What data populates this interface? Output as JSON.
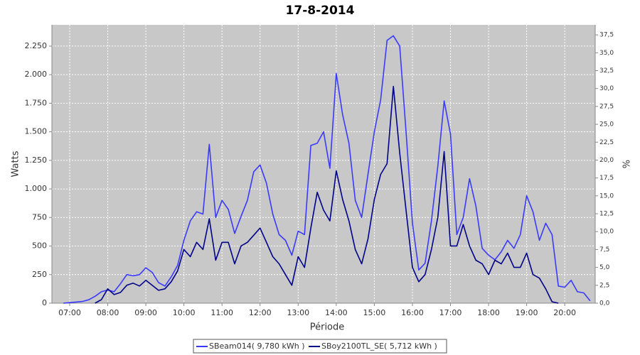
{
  "chart_data": {
    "type": "line",
    "title": "17-8-2014",
    "x_label": "Période",
    "y_label": "Watts",
    "y2_label": "%",
    "xlim": [
      "06:32",
      "20:48"
    ],
    "xticks": [
      "07:00",
      "08:00",
      "09:00",
      "10:00",
      "11:00",
      "12:00",
      "13:00",
      "14:00",
      "15:00",
      "16:00",
      "17:00",
      "18:00",
      "19:00",
      "20:00"
    ],
    "ylim": [
      0,
      2436
    ],
    "yticks": [
      0,
      250,
      500,
      750,
      {
        "value": 1000,
        "label": "1.000"
      },
      {
        "value": 1250,
        "label": "1.250"
      },
      {
        "value": 1500,
        "label": "1.500"
      },
      {
        "value": 1750,
        "label": "1.750"
      },
      {
        "value": 2000,
        "label": "2.000"
      },
      {
        "value": 2250,
        "label": "2.250"
      }
    ],
    "y2lim": [
      0,
      38.9
    ],
    "y2ticks": [
      {
        "value": 0,
        "label": "0,0"
      },
      {
        "value": 2.5,
        "label": "2,5"
      },
      {
        "value": 5,
        "label": "5,0"
      },
      {
        "value": 7.5,
        "label": "7,5"
      },
      {
        "value": 10,
        "label": "10,0"
      },
      {
        "value": 12.5,
        "label": "12,5"
      },
      {
        "value": 15,
        "label": "15,0"
      },
      {
        "value": 17.5,
        "label": "17,5"
      },
      {
        "value": 20,
        "label": "20,0"
      },
      {
        "value": 22.5,
        "label": "22,5"
      },
      {
        "value": 25,
        "label": "25,0"
      },
      {
        "value": 27.5,
        "label": "27,5"
      },
      {
        "value": 30,
        "label": "30,0"
      },
      {
        "value": 32.5,
        "label": "32,5"
      },
      {
        "value": 35,
        "label": "35,0"
      },
      {
        "value": 37.5,
        "label": "37,5"
      }
    ],
    "grid": true,
    "legend": "bottom",
    "series": [
      {
        "name": "SBeam014( 9,780 kWh )",
        "color": "#3a3aff",
        "axis": "y",
        "x": [
          "06:50",
          "07:00",
          "07:10",
          "07:20",
          "07:30",
          "07:40",
          "07:50",
          "08:00",
          "08:10",
          "08:20",
          "08:30",
          "08:40",
          "08:50",
          "09:00",
          "09:10",
          "09:20",
          "09:30",
          "09:40",
          "09:50",
          "10:00",
          "10:10",
          "10:20",
          "10:30",
          "10:40",
          "10:50",
          "11:00",
          "11:10",
          "11:20",
          "11:30",
          "11:40",
          "11:50",
          "12:00",
          "12:10",
          "12:20",
          "12:30",
          "12:40",
          "12:50",
          "13:00",
          "13:10",
          "13:20",
          "13:30",
          "13:40",
          "13:50",
          "14:00",
          "14:10",
          "14:20",
          "14:30",
          "14:40",
          "14:50",
          "15:00",
          "15:10",
          "15:20",
          "15:30",
          "15:40",
          "15:50",
          "16:00",
          "16:10",
          "16:20",
          "16:30",
          "16:40",
          "16:50",
          "17:00",
          "17:10",
          "17:20",
          "17:30",
          "17:40",
          "17:50",
          "18:00",
          "18:10",
          "18:20",
          "18:30",
          "18:40",
          "18:50",
          "19:00",
          "19:10",
          "19:20",
          "19:30",
          "19:40",
          "19:50",
          "20:00",
          "20:10",
          "20:20",
          "20:30",
          "20:40"
        ],
        "values": [
          0,
          5,
          10,
          15,
          30,
          60,
          100,
          115,
          100,
          170,
          250,
          240,
          250,
          310,
          270,
          180,
          150,
          230,
          330,
          550,
          720,
          800,
          780,
          1390,
          750,
          900,
          820,
          610,
          760,
          900,
          1150,
          1210,
          1050,
          780,
          600,
          550,
          420,
          630,
          600,
          1380,
          1400,
          1500,
          1180,
          2010,
          1650,
          1400,
          900,
          750,
          1130,
          1500,
          1780,
          2300,
          2340,
          2250,
          1500,
          700,
          290,
          350,
          720,
          1200,
          1770,
          1480,
          600,
          750,
          1090,
          850,
          480,
          420,
          380,
          450,
          550,
          480,
          600,
          940,
          800,
          550,
          700,
          600,
          150,
          140,
          200,
          100,
          90,
          20
        ]
      },
      {
        "name": "SBoy2100TL_SE( 5,712 kWh )",
        "color": "#00008b",
        "axis": "y2",
        "x": [
          "07:40",
          "07:50",
          "08:00",
          "08:10",
          "08:20",
          "08:30",
          "08:40",
          "08:50",
          "09:00",
          "09:10",
          "09:20",
          "09:30",
          "09:40",
          "09:50",
          "10:00",
          "10:10",
          "10:20",
          "10:30",
          "10:40",
          "10:50",
          "11:00",
          "11:10",
          "11:20",
          "11:30",
          "11:40",
          "11:50",
          "12:00",
          "12:10",
          "12:20",
          "12:30",
          "12:40",
          "12:50",
          "13:00",
          "13:10",
          "13:20",
          "13:30",
          "13:40",
          "13:50",
          "14:00",
          "14:10",
          "14:20",
          "14:30",
          "14:40",
          "14:50",
          "15:00",
          "15:10",
          "15:20",
          "15:30",
          "15:40",
          "15:50",
          "16:00",
          "16:10",
          "16:20",
          "16:30",
          "16:40",
          "16:50",
          "17:00",
          "17:10",
          "17:20",
          "17:30",
          "17:40",
          "17:50",
          "18:00",
          "18:10",
          "18:20",
          "18:30",
          "18:40",
          "18:50",
          "19:00",
          "19:10",
          "19:20",
          "19:30",
          "19:40",
          "19:50"
        ],
        "values": [
          0,
          0.5,
          2,
          1.2,
          1.5,
          2.5,
          2.8,
          2.4,
          3.2,
          2.5,
          1.8,
          2,
          3,
          4.5,
          7.5,
          6.5,
          8.5,
          7.5,
          11.8,
          6,
          8.5,
          8.5,
          5.5,
          8,
          8.5,
          9.5,
          10.5,
          8.5,
          6.5,
          5.5,
          4,
          2.5,
          6.5,
          5,
          10.5,
          15.5,
          13,
          11.5,
          18.5,
          14.5,
          11.5,
          7.5,
          5.5,
          9,
          14.5,
          18,
          19.5,
          30.3,
          21,
          13,
          5,
          3,
          4,
          7.5,
          12,
          21.2,
          8,
          8,
          11,
          8,
          6,
          5.5,
          4,
          6,
          5.5,
          7,
          5,
          5,
          7,
          4,
          3.5,
          2,
          0.2,
          0
        ]
      }
    ]
  }
}
